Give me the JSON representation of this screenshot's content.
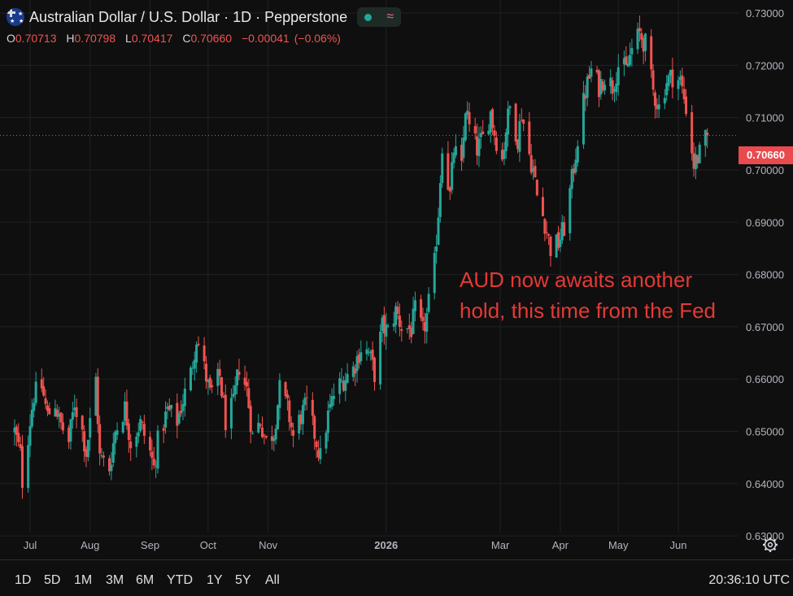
{
  "header": {
    "title": "Australian Dollar / U.S. Dollar · 1D · Pepperstone",
    "ohlc": {
      "o_label": "O",
      "o": "0.70713",
      "h_label": "H",
      "h": "0.70798",
      "l_label": "L",
      "l": "0.70417",
      "c_label": "C",
      "c": "0.70660",
      "change": "−0.00041",
      "change_pct": "(−0.06%)"
    }
  },
  "annotation": {
    "line1": "AUD now awaits another",
    "line2": "hold, this time from the Fed"
  },
  "current_price": "0.70660",
  "timeframes": [
    "1D",
    "5D",
    "1M",
    "3M",
    "6M",
    "YTD",
    "1Y",
    "5Y",
    "All"
  ],
  "clock": "20:36:10 UTC",
  "colors": {
    "up": "#26a69a",
    "down": "#ef5350",
    "annotation": "#e53935",
    "background": "#0f0f0f",
    "price_tag": "#e84a4e"
  },
  "chart_data": {
    "type": "candlestick",
    "title": "Australian Dollar / U.S. Dollar · 1D · Pepperstone",
    "y_ticks": [
      "0.63000",
      "0.64000",
      "0.65000",
      "0.66000",
      "0.67000",
      "0.68000",
      "0.69000",
      "0.70000",
      "0.71000",
      "0.72000",
      "0.73000"
    ],
    "ylim": [
      0.6255,
      0.7325
    ],
    "x_tick_labels": [
      "Jul",
      "Aug",
      "Sep",
      "Oct",
      "Nov",
      "2026",
      "Mar",
      "Apr",
      "May",
      "Jun"
    ],
    "grid": true,
    "current_line": 0.7066,
    "anchors": [
      [
        "Jun 23",
        0.65
      ],
      [
        "Jun 26",
        0.6455
      ],
      [
        "Jun 27",
        0.6405
      ],
      [
        "Jul 1",
        0.652
      ],
      [
        "Jul 3",
        0.657
      ],
      [
        "Jul 7",
        0.6585
      ],
      [
        "Jul 10",
        0.653
      ],
      [
        "Jul 14",
        0.6555
      ],
      [
        "Jul 16",
        0.652
      ],
      [
        "Jul 21",
        0.648
      ],
      [
        "Jul 24",
        0.6555
      ],
      [
        "Jul 28",
        0.65
      ],
      [
        "Jul 30",
        0.646
      ],
      [
        "Aug 4",
        0.66
      ],
      [
        "Aug 6",
        0.645
      ],
      [
        "Aug 11",
        0.643
      ],
      [
        "Aug 14",
        0.65
      ],
      [
        "Aug 19",
        0.6545
      ],
      [
        "Aug 22",
        0.648
      ],
      [
        "Aug 27",
        0.6515
      ],
      [
        "Sep 1",
        0.646
      ],
      [
        "Sep 3",
        0.643
      ],
      [
        "Sep 5",
        0.648
      ],
      [
        "Sep 10",
        0.654
      ],
      [
        "Sep 15",
        0.652
      ],
      [
        "Sep 18",
        0.656
      ],
      [
        "Sep 22",
        0.661
      ],
      [
        "Sep 25",
        0.668
      ],
      [
        "Sep 29",
        0.662
      ],
      [
        "Oct 2",
        0.657
      ],
      [
        "Oct 7",
        0.6605
      ],
      [
        "Oct 10",
        0.652
      ],
      [
        "Oct 14",
        0.655
      ],
      [
        "Oct 17",
        0.6625
      ],
      [
        "Oct 21",
        0.658
      ],
      [
        "Oct 24",
        0.649
      ],
      [
        "Oct 28",
        0.652
      ],
      [
        "Oct 31",
        0.648
      ],
      [
        "Nov 4",
        0.65
      ],
      [
        "Nov 7",
        0.658
      ],
      [
        "Nov 11",
        0.6545
      ],
      [
        "Nov 14",
        0.649
      ],
      [
        "Nov 18",
        0.653
      ],
      [
        "Nov 21",
        0.655
      ],
      [
        "Nov 25",
        0.6495
      ],
      [
        "Nov 28",
        0.645
      ],
      [
        "Dec 2",
        0.653
      ],
      [
        "Dec 5",
        0.657
      ],
      [
        "Dec 10",
        0.66
      ],
      [
        "Dec 15",
        0.662
      ],
      [
        "Dec 19",
        0.666
      ],
      [
        "Dec 23",
        0.665
      ],
      [
        "Dec 26",
        0.661
      ],
      [
        "Dec 30",
        0.67
      ],
      [
        "Jan 2",
        0.669
      ],
      [
        "Jan 6",
        0.673
      ],
      [
        "Jan 9",
        0.67
      ],
      [
        "Jan 14",
        0.6695
      ],
      [
        "Jan 16",
        0.673
      ],
      [
        "Jan 20",
        0.669
      ],
      [
        "Jan 22",
        0.672
      ],
      [
        "Jan 26",
        0.682
      ],
      [
        "Jan 28",
        0.692
      ],
      [
        "Jan 30",
        0.705
      ],
      [
        "Feb 3",
        0.695
      ],
      [
        "Feb 5",
        0.704
      ],
      [
        "Feb 9",
        0.7
      ],
      [
        "Feb 11",
        0.712
      ],
      [
        "Feb 13",
        0.708
      ],
      [
        "Feb 17",
        0.704
      ],
      [
        "Feb 20",
        0.706
      ],
      [
        "Feb 24",
        0.711
      ],
      [
        "Feb 26",
        0.707
      ],
      [
        "Mar 2",
        0.702
      ],
      [
        "Mar 4",
        0.708
      ],
      [
        "Mar 6",
        0.712
      ],
      [
        "Mar 10",
        0.706
      ],
      [
        "Mar 12",
        0.711
      ],
      [
        "Mar 16",
        0.703
      ],
      [
        "Mar 18",
        0.7
      ],
      [
        "Mar 20",
        0.695
      ],
      [
        "Mar 24",
        0.69
      ],
      [
        "Mar 27",
        0.685
      ],
      [
        "Mar 31",
        0.686
      ],
      [
        "Apr 3",
        0.689
      ],
      [
        "Apr 7",
        0.698
      ],
      [
        "Apr 10",
        0.706
      ],
      [
        "Apr 14",
        0.715
      ],
      [
        "Apr 17",
        0.719
      ],
      [
        "Apr 21",
        0.716
      ],
      [
        "Apr 24",
        0.718
      ],
      [
        "Apr 28",
        0.716
      ],
      [
        "May 1",
        0.72
      ],
      [
        "May 5",
        0.719
      ],
      [
        "May 8",
        0.723
      ],
      [
        "May 12",
        0.726
      ],
      [
        "May 15",
        0.724
      ],
      [
        "May 19",
        0.715
      ],
      [
        "May 22",
        0.712
      ],
      [
        "May 26",
        0.717
      ],
      [
        "May 29",
        0.718
      ],
      [
        "Jun 2",
        0.717
      ],
      [
        "Jun 5",
        0.712
      ],
      [
        "Jun 9",
        0.701
      ],
      [
        "Jun 12",
        0.703
      ],
      [
        "Jun 16",
        0.7066
      ]
    ],
    "last_bar": {
      "open": 0.70713,
      "high": 0.70798,
      "low": 0.70417,
      "close": 0.7066
    }
  }
}
